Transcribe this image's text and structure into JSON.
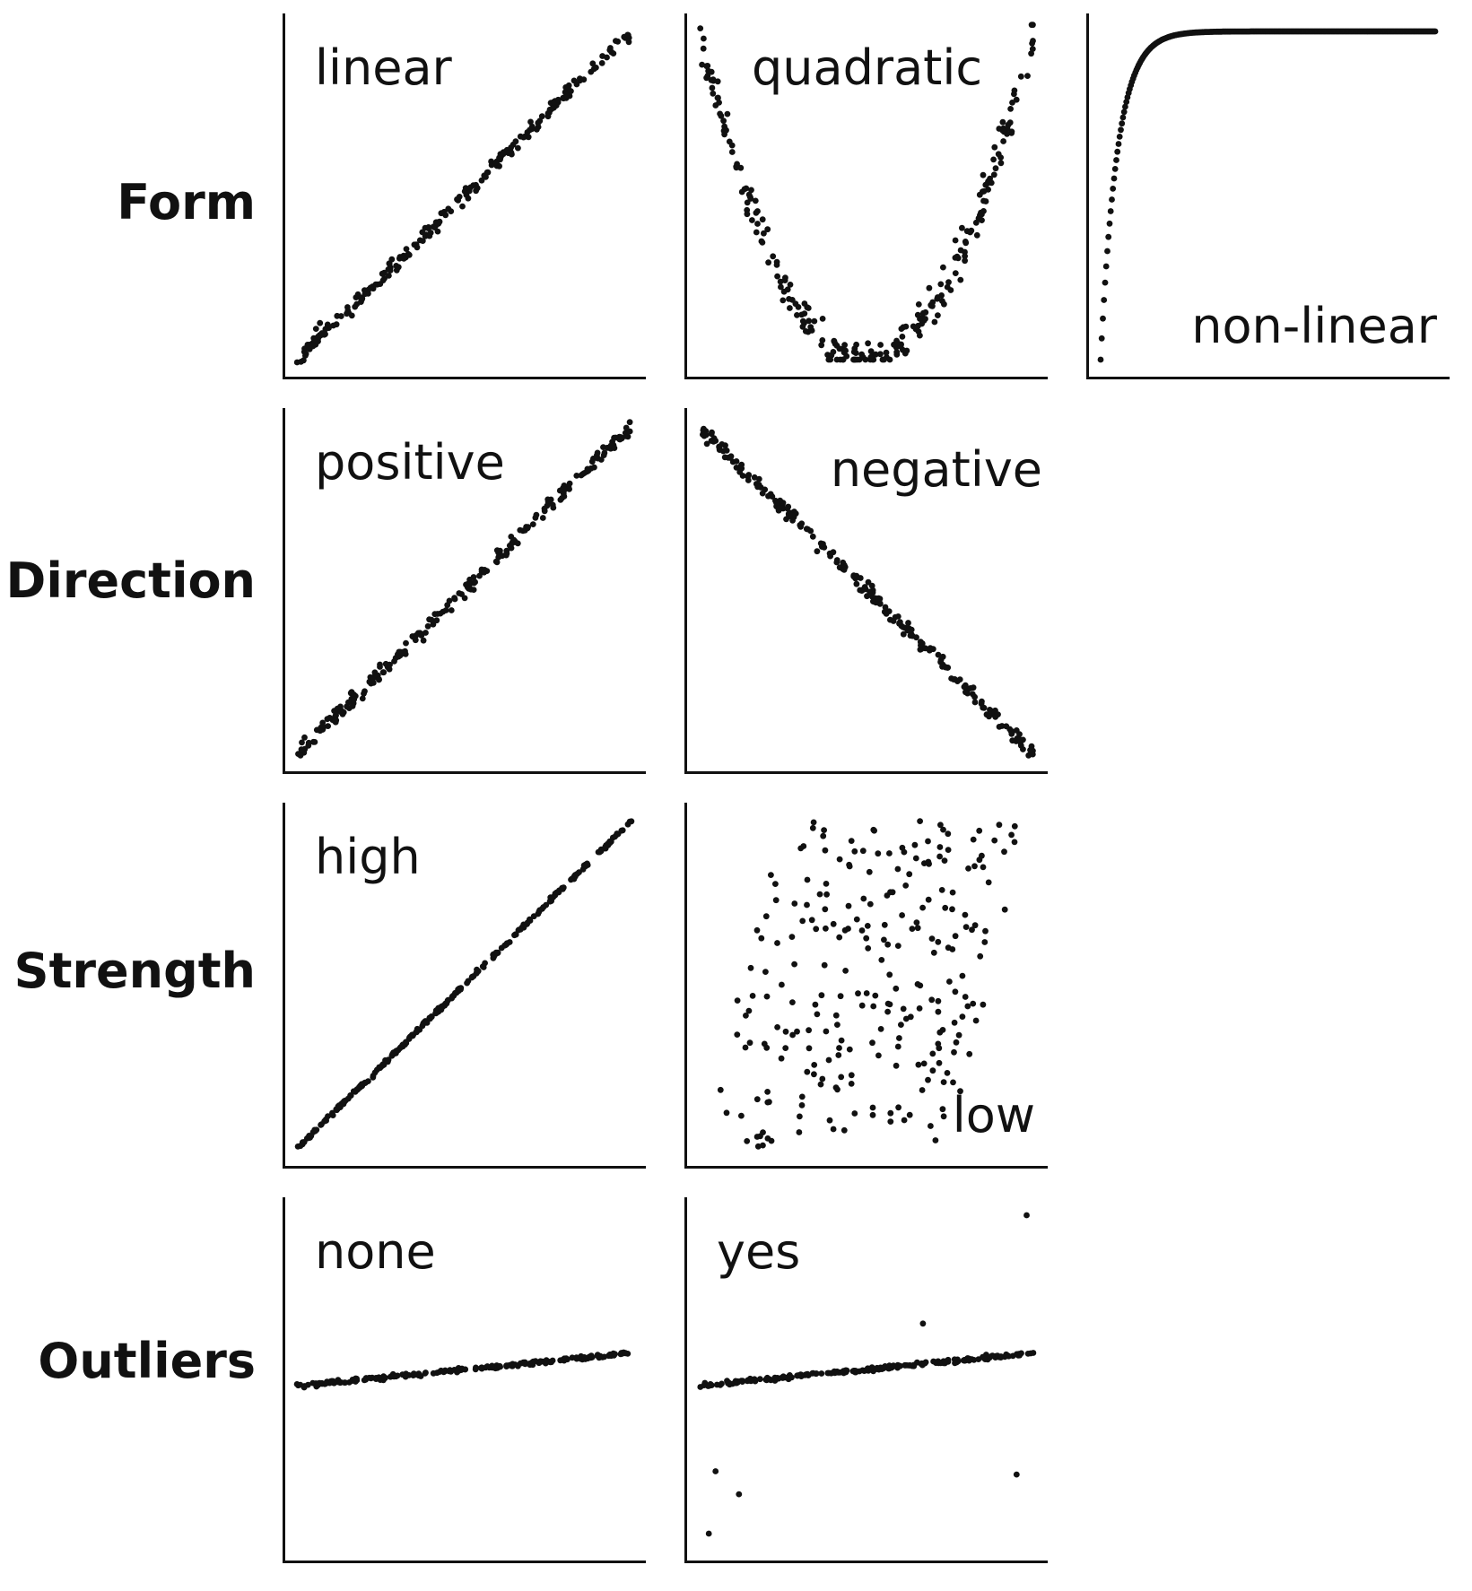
{
  "rows": [
    {
      "label": "Form"
    },
    {
      "label": "Direction"
    },
    {
      "label": "Strength"
    },
    {
      "label": "Outliers"
    }
  ],
  "chart_data": [
    {
      "type": "scatter",
      "row": "Form",
      "label": "linear",
      "label_pos": "top-left",
      "generator": {
        "kind": "linear",
        "n": 220,
        "slope": 1.0,
        "intercept": 0.0,
        "noise": 0.012,
        "seed": 11
      }
    },
    {
      "type": "scatter",
      "row": "Form",
      "label": "quadratic",
      "label_pos": "top-center",
      "generator": {
        "kind": "quadratic",
        "n": 260,
        "noise": 0.03,
        "seed": 23
      }
    },
    {
      "type": "scatter",
      "row": "Form",
      "label": "non-linear",
      "label_pos": "bottom-right",
      "generator": {
        "kind": "saturating",
        "n": 300,
        "rate": 20,
        "noise": 0.0,
        "seed": 5
      }
    },
    {
      "type": "scatter",
      "row": "Direction",
      "label": "positive",
      "label_pos": "top-left",
      "generator": {
        "kind": "linear",
        "n": 220,
        "slope": 1.0,
        "intercept": 0.0,
        "noise": 0.012,
        "seed": 31
      }
    },
    {
      "type": "scatter",
      "row": "Direction",
      "label": "negative",
      "label_pos": "top-right",
      "generator": {
        "kind": "linear",
        "n": 220,
        "slope": -1.0,
        "intercept": 1.0,
        "noise": 0.012,
        "seed": 41
      }
    },
    {
      "type": "scatter",
      "row": "Strength",
      "label": "high",
      "label_pos": "top-left",
      "generator": {
        "kind": "linear",
        "n": 260,
        "slope": 1.0,
        "intercept": 0.0,
        "noise": 0.003,
        "seed": 51
      }
    },
    {
      "type": "scatter",
      "row": "Strength",
      "label": "low",
      "label_pos": "bottom-right",
      "generator": {
        "kind": "band",
        "n": 250,
        "width": 0.75,
        "seed": 61
      }
    },
    {
      "type": "scatter",
      "row": "Outliers",
      "label": "none",
      "label_pos": "top-left",
      "generator": {
        "kind": "linear",
        "n": 220,
        "slope": 0.1,
        "intercept": 0.48,
        "noise": 0.003,
        "seed": 71
      }
    },
    {
      "type": "scatter",
      "row": "Outliers",
      "label": "yes",
      "label_pos": "top-left",
      "generator": {
        "kind": "linear",
        "n": 220,
        "slope": 0.1,
        "intercept": 0.48,
        "noise": 0.003,
        "seed": 81
      },
      "outliers": [
        [
          0.05,
          0.22
        ],
        [
          0.12,
          0.15
        ],
        [
          0.95,
          0.21
        ],
        [
          0.03,
          0.03
        ],
        [
          0.67,
          0.67
        ],
        [
          0.98,
          1.0
        ]
      ]
    }
  ],
  "axes": {
    "xlim": [
      0,
      1
    ],
    "ylim": [
      0,
      1
    ],
    "grid": false,
    "ticks": false
  },
  "colors": {
    "points": "#111111",
    "axis": "#111111",
    "text": "#111111"
  }
}
